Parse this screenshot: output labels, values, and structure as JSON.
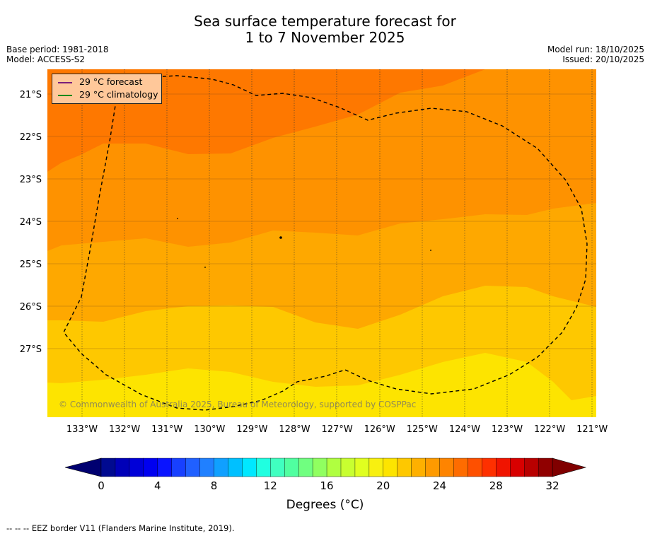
{
  "title": {
    "line1": "Sea surface temperature forecast for",
    "line2": "1 to 7 November 2025"
  },
  "meta": {
    "base_period": "Base period: 1981-2018",
    "model": "Model: ACCESS-S2",
    "model_run": "Model run: 18/10/2025",
    "issued": "Issued: 20/10/2025"
  },
  "legend": {
    "forecast": {
      "label": "29 °C  forecast",
      "color": "#7b1e7a"
    },
    "climatology": {
      "label": "29 °C  climatology",
      "color": "#1a8a1a"
    }
  },
  "map": {
    "latitude_labels": [
      "21°S",
      "22°S",
      "23°S",
      "24°S",
      "25°S",
      "26°S",
      "27°S"
    ],
    "longitude_labels": [
      "133°W",
      "132°W",
      "131°W",
      "130°W",
      "129°W",
      "128°W",
      "127°W",
      "126°W",
      "125°W",
      "124°W",
      "123°W",
      "122°W",
      "121°W"
    ],
    "copyright": "© Commonwealth of Australia 2025, Bureau of Meteorology, supported by COSPPac",
    "band_colors": {
      "b1": "#fde400",
      "b2": "#fec800",
      "b3": "#fea800",
      "b4": "#fe9200",
      "b5": "#fe7800"
    }
  },
  "colorbar": {
    "tick_labels": [
      "0",
      "4",
      "8",
      "12",
      "16",
      "20",
      "24",
      "28",
      "32"
    ],
    "title": "Degrees (°C)",
    "colors": [
      "#000a90",
      "#0000b8",
      "#0000d8",
      "#0000f0",
      "#0a14ff",
      "#1840ff",
      "#2060ff",
      "#2080ff",
      "#10a0ff",
      "#00c0ff",
      "#00e8ff",
      "#20ffe0",
      "#40ffc0",
      "#50ffa0",
      "#70ff80",
      "#90ff60",
      "#b0ff40",
      "#c8ff30",
      "#e0ff20",
      "#f8f010",
      "#fde400",
      "#fec800",
      "#feb000",
      "#fe9a00",
      "#fe8400",
      "#fe6c00",
      "#fe5000",
      "#fe3000",
      "#f01400",
      "#d80000",
      "#b80000",
      "#900000"
    ],
    "low_extension_color": "#000070",
    "high_extension_color": "#800000"
  },
  "footer": "--  --  -- EEZ border V11 (Flanders Marine Institute, 2019)."
}
